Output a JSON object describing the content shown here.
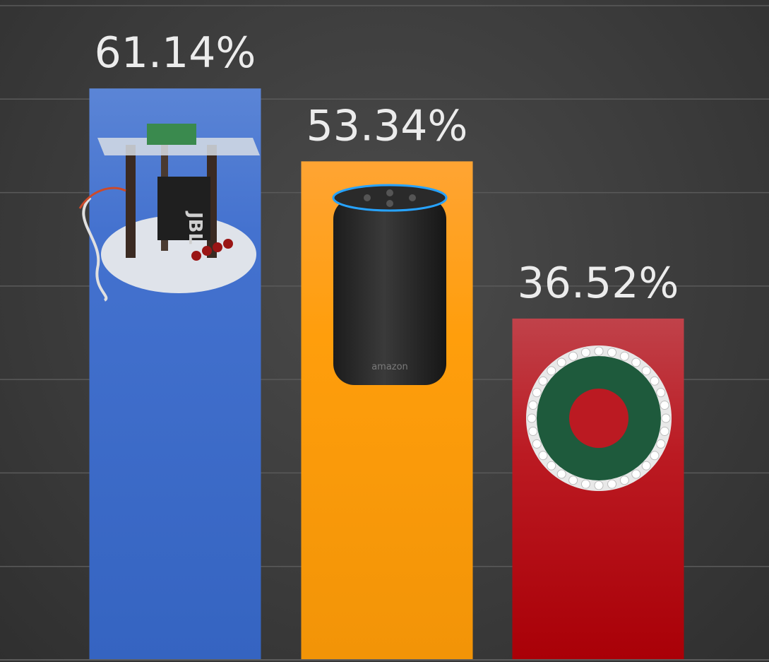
{
  "chart_data": {
    "type": "bar",
    "title": "",
    "xlabel": "",
    "ylabel": "",
    "categories": [
      "",
      "",
      ""
    ],
    "values": [
      61.14,
      53.34,
      36.52
    ],
    "value_labels": [
      "61.14%",
      "53.34%",
      "36.52%"
    ],
    "ylim": [
      0,
      70
    ],
    "grid": true,
    "legend": "none",
    "bar_images": [
      "jbl-speaker-rig",
      "amazon-echo-speaker",
      "circular-led-mic-array-board"
    ],
    "colors": [
      "#3f6cc9",
      "#f79a12",
      "#b5141b"
    ],
    "gridline_color": "#5a5a5a",
    "label_color": "#ececec"
  }
}
